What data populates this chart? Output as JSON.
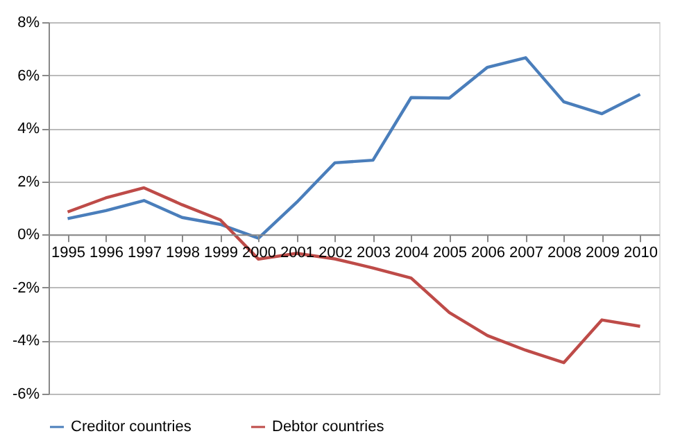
{
  "chart_data": {
    "type": "line",
    "categories": [
      "1995",
      "1996",
      "1997",
      "1998",
      "1999",
      "2000",
      "2001",
      "2002",
      "2003",
      "2004",
      "2005",
      "2006",
      "2007",
      "2008",
      "2009",
      "2010"
    ],
    "series": [
      {
        "name": "Creditor countries",
        "color": "#4a7ebb",
        "values": [
          0.6,
          0.9,
          1.28,
          0.64,
          0.38,
          -0.14,
          1.21,
          2.7,
          2.8,
          5.16,
          5.14,
          6.3,
          6.66,
          5.0,
          4.55,
          5.28
        ]
      },
      {
        "name": "Debtor countries",
        "color": "#be4b48",
        "values": [
          0.85,
          1.38,
          1.76,
          1.12,
          0.55,
          -0.93,
          -0.71,
          -0.92,
          -1.26,
          -1.64,
          -2.94,
          -3.81,
          -4.36,
          -4.83,
          -3.22,
          -3.46
        ]
      }
    ],
    "ylim": [
      -6,
      8
    ],
    "yticks": [
      {
        "value": -6,
        "label": "-6%"
      },
      {
        "value": -4,
        "label": "-4%"
      },
      {
        "value": -2,
        "label": "-2%"
      },
      {
        "value": 0,
        "label": "0%"
      },
      {
        "value": 2,
        "label": "2%"
      },
      {
        "value": 4,
        "label": "4%"
      },
      {
        "value": 6,
        "label": "6%"
      },
      {
        "value": 8,
        "label": "8%"
      }
    ],
    "grid": "y",
    "legend": "bottom",
    "marker": "none",
    "line_style": "solid"
  }
}
